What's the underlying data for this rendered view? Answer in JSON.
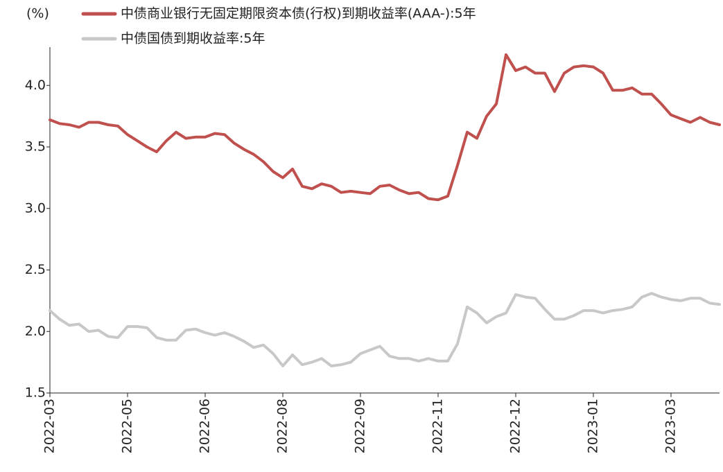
{
  "chart_data": {
    "type": "line",
    "y_label": "(%)",
    "categories": [
      "2022-03",
      null,
      null,
      null,
      null,
      null,
      null,
      null,
      "2022-05",
      null,
      null,
      null,
      null,
      null,
      null,
      null,
      "2022-06",
      null,
      null,
      null,
      null,
      null,
      null,
      null,
      "2022-08",
      null,
      null,
      null,
      null,
      null,
      null,
      null,
      "2022-09",
      null,
      null,
      null,
      null,
      null,
      null,
      null,
      "2022-11",
      null,
      null,
      null,
      null,
      null,
      null,
      null,
      "2022-12",
      null,
      null,
      null,
      null,
      null,
      null,
      null,
      "2023-01",
      null,
      null,
      null,
      null,
      null,
      null,
      null,
      "2023-03",
      null,
      null,
      null,
      null,
      null
    ],
    "series": [
      {
        "name": "中债商业银行无固定期限资本债(行权)到期收益率(AAA-):5年",
        "color": "#c0504d",
        "values": [
          3.72,
          3.69,
          3.68,
          3.66,
          3.7,
          3.7,
          3.68,
          3.67,
          3.6,
          3.55,
          3.5,
          3.46,
          3.55,
          3.62,
          3.57,
          3.58,
          3.58,
          3.61,
          3.6,
          3.53,
          3.48,
          3.44,
          3.38,
          3.3,
          3.25,
          3.32,
          3.18,
          3.16,
          3.2,
          3.18,
          3.13,
          3.14,
          3.13,
          3.12,
          3.18,
          3.19,
          3.15,
          3.12,
          3.13,
          3.08,
          3.07,
          3.1,
          3.35,
          3.62,
          3.57,
          3.75,
          3.85,
          4.25,
          4.12,
          4.15,
          4.1,
          4.1,
          3.95,
          4.1,
          4.15,
          4.16,
          4.15,
          4.1,
          3.96,
          3.96,
          3.98,
          3.93,
          3.93,
          3.85,
          3.76,
          3.73,
          3.7,
          3.74,
          3.7,
          3.68
        ]
      },
      {
        "name": "中债国债到期收益率:5年",
        "color": "#c8c8c8",
        "values": [
          2.17,
          2.1,
          2.05,
          2.06,
          2.0,
          2.01,
          1.96,
          1.95,
          2.04,
          2.04,
          2.03,
          1.95,
          1.93,
          1.93,
          2.01,
          2.02,
          1.99,
          1.97,
          1.99,
          1.96,
          1.92,
          1.87,
          1.89,
          1.82,
          1.72,
          1.81,
          1.73,
          1.75,
          1.78,
          1.72,
          1.73,
          1.75,
          1.82,
          1.85,
          1.88,
          1.8,
          1.78,
          1.78,
          1.76,
          1.78,
          1.76,
          1.76,
          1.9,
          2.2,
          2.15,
          2.07,
          2.12,
          2.15,
          2.3,
          2.28,
          2.27,
          2.18,
          2.1,
          2.1,
          2.13,
          2.17,
          2.17,
          2.15,
          2.17,
          2.18,
          2.2,
          2.28,
          2.31,
          2.28,
          2.26,
          2.25,
          2.27,
          2.27,
          2.23,
          2.22
        ]
      }
    ],
    "ylim": [
      1.5,
      4.3
    ],
    "yticks": [
      1.5,
      {
        "value": 2,
        "label": "2.0"
      },
      2.5,
      {
        "value": 3,
        "label": "3.0"
      },
      3.5,
      {
        "value": 4,
        "label": "4.0"
      }
    ],
    "grid": false
  }
}
